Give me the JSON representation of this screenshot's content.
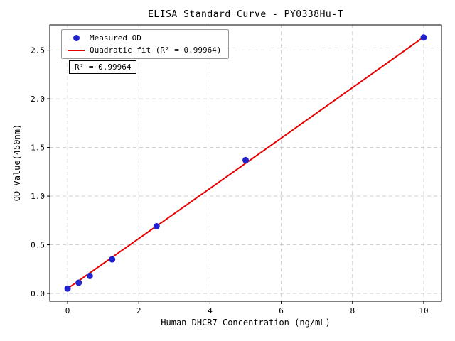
{
  "chart_data": {
    "type": "scatter",
    "title": "ELISA Standard Curve - PY0338Hu-T",
    "xlabel": "Human DHCR7 Concentration (ng/mL)",
    "ylabel": "OD Value(450nm)",
    "xlim": [
      -0.5,
      10.5
    ],
    "ylim": [
      -0.08,
      2.76
    ],
    "grid": true,
    "legend_position": "upper left",
    "annotation": "R² = 0.99964",
    "x_ticks": [
      {
        "v": 0,
        "label": "0"
      },
      {
        "v": 2,
        "label": "2"
      },
      {
        "v": 4,
        "label": "4"
      },
      {
        "v": 6,
        "label": "6"
      },
      {
        "v": 8,
        "label": "8"
      },
      {
        "v": 10,
        "label": "10"
      }
    ],
    "y_ticks": [
      {
        "v": 0.0,
        "label": "0.0"
      },
      {
        "v": 0.5,
        "label": "0.5"
      },
      {
        "v": 1.0,
        "label": "1.0"
      },
      {
        "v": 1.5,
        "label": "1.5"
      },
      {
        "v": 2.0,
        "label": "2.0"
      },
      {
        "v": 2.5,
        "label": "2.5"
      }
    ],
    "series": [
      {
        "name": "Measured OD",
        "type": "scatter",
        "color": "#2222cc",
        "x": [
          0,
          0.3125,
          0.625,
          1.25,
          2.5,
          5,
          10
        ],
        "y": [
          0.05,
          0.11,
          0.18,
          0.35,
          0.69,
          1.37,
          2.63
        ]
      },
      {
        "name": "Quadratic fit (R² = 0.99964)",
        "type": "line",
        "color": "#e60000",
        "fit": {
          "a": 0.05,
          "b": 0.2565,
          "c": 0.0002,
          "x_start": 0,
          "x_end": 10
        }
      }
    ],
    "colors": {
      "grid": "#c9c9c9",
      "frame": "#000000",
      "tick": "#000000"
    }
  }
}
